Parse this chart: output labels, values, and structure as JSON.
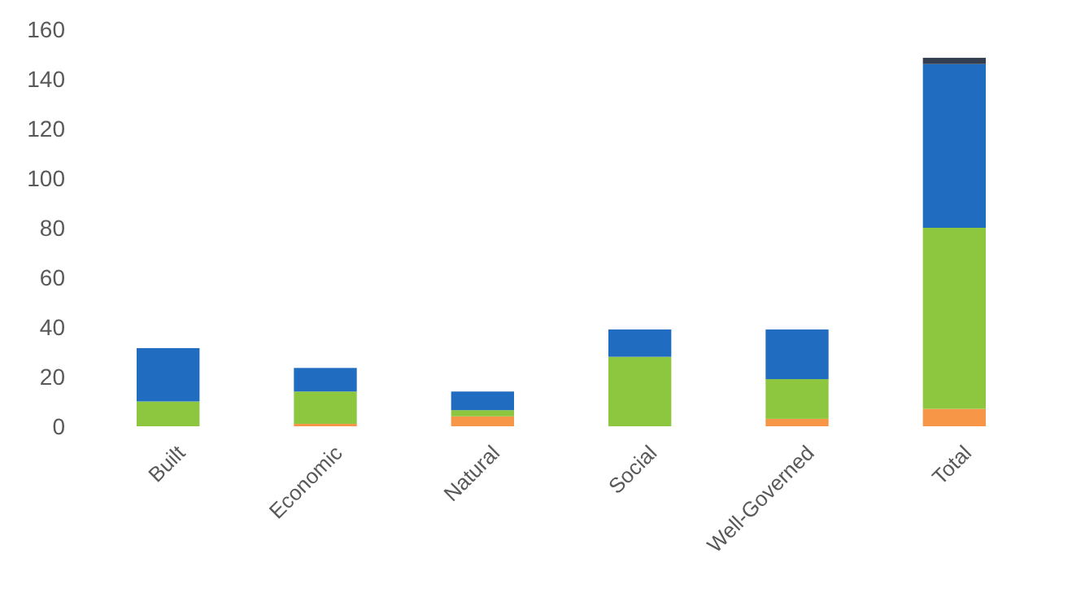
{
  "chart_data": {
    "type": "bar",
    "stacked": true,
    "categories": [
      "Built",
      "Economic",
      "Natural",
      "Social",
      "Well-Governed",
      "Total"
    ],
    "series": [
      {
        "color": "#f79646",
        "values": [
          0,
          1,
          4,
          0,
          3,
          7
        ]
      },
      {
        "color": "#8dc63f",
        "values": [
          10,
          13,
          2.5,
          28,
          16,
          73
        ]
      },
      {
        "color": "#1f6cc1",
        "values": [
          21.5,
          9.5,
          7.5,
          11,
          20,
          66
        ]
      },
      {
        "color": "#333f50",
        "values": [
          0,
          0,
          0,
          0,
          0,
          2.5
        ]
      }
    ],
    "ylim": [
      0,
      160
    ],
    "yticks": [
      0,
      20,
      40,
      60,
      80,
      100,
      120,
      140,
      160
    ],
    "grid": false
  }
}
